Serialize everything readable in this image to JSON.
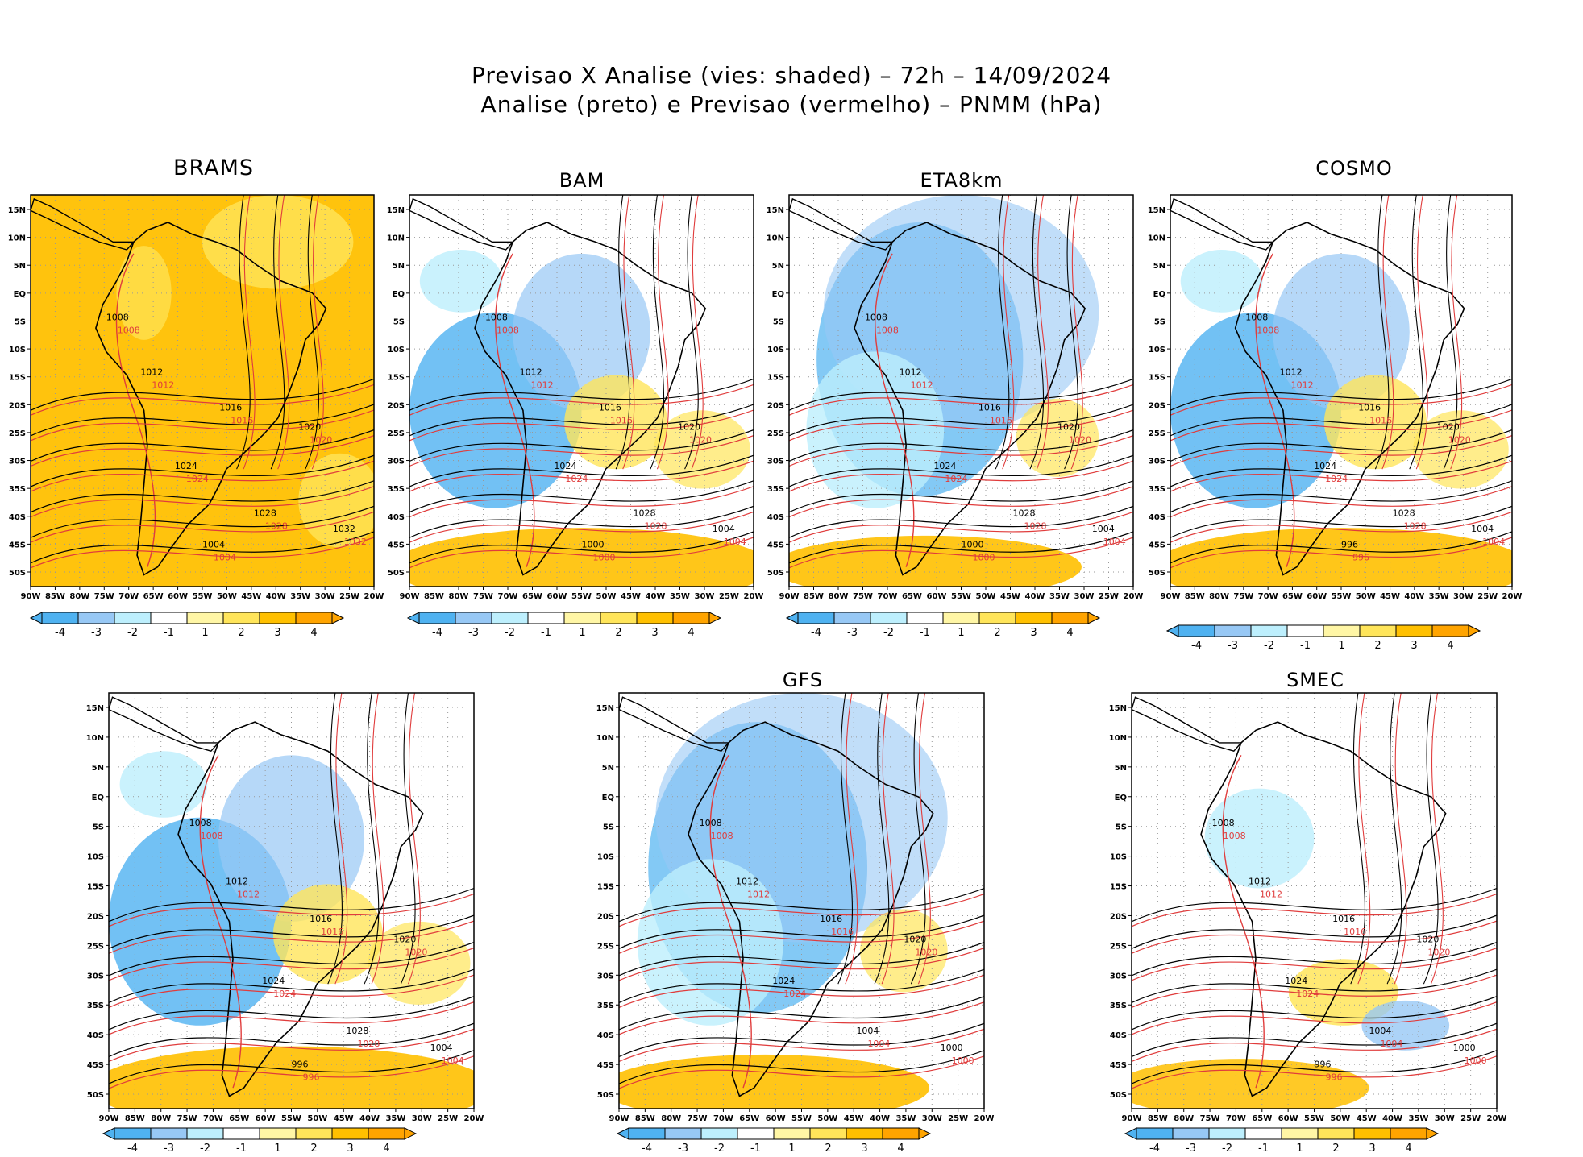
{
  "title": {
    "line1": "Previsao X Analise (vies: shaded) – 72h – 14/09/2024",
    "line2": "Analise (preto) e Previsao (vermelho) – PNMM (hPa)"
  },
  "axes": {
    "lon_labels": [
      "90W",
      "85W",
      "80W",
      "75W",
      "70W",
      "65W",
      "60W",
      "55W",
      "50W",
      "45W",
      "40W",
      "35W",
      "30W",
      "25W",
      "20W"
    ],
    "lat_labels": [
      "15N",
      "10N",
      "5N",
      "EQ",
      "5S",
      "10S",
      "15S",
      "20S",
      "25S",
      "30S",
      "35S",
      "40S",
      "45S",
      "50S"
    ]
  },
  "colorbar": {
    "ticks": [
      "-4",
      "-3",
      "-2",
      "-1",
      "1",
      "2",
      "3",
      "4"
    ],
    "colors": [
      "#4fb2f1",
      "#97c8f5",
      "#bdeffd",
      "#ffffff",
      "#fff6a5",
      "#ffe55a",
      "#ffc000",
      "#ffa400"
    ]
  },
  "panels": [
    {
      "name": "BRAMS",
      "bias": "warm-uniform",
      "contours": [
        "1008",
        "1012",
        "1016",
        "1020",
        "1024",
        "1028",
        "1032",
        "1004"
      ]
    },
    {
      "name": "BAM",
      "bias": "mixed",
      "contours": [
        "1008",
        "1012",
        "1016",
        "1020",
        "1024",
        "1028",
        "1004",
        "1000"
      ]
    },
    {
      "name": "ETA8km",
      "bias": "cold",
      "contours": [
        "1008",
        "1012",
        "1016",
        "1020",
        "1024",
        "1028",
        "1004",
        "1000"
      ]
    },
    {
      "name": "COSMO",
      "bias": "mixed",
      "contours": [
        "1008",
        "1012",
        "1016",
        "1020",
        "1024",
        "1028",
        "1004",
        "996"
      ]
    },
    {
      "name": "",
      "bias": "mixed",
      "contours": [
        "1008",
        "1012",
        "1016",
        "1020",
        "1024",
        "1028",
        "1004",
        "996"
      ]
    },
    {
      "name": "GFS",
      "bias": "cold",
      "contours": [
        "1008",
        "1012",
        "1016",
        "1020",
        "1024",
        "1004",
        "1000"
      ]
    },
    {
      "name": "SMEC",
      "bias": "light",
      "contours": [
        "1008",
        "1012",
        "1016",
        "1020",
        "1024",
        "1004",
        "1000",
        "996"
      ]
    }
  ]
}
